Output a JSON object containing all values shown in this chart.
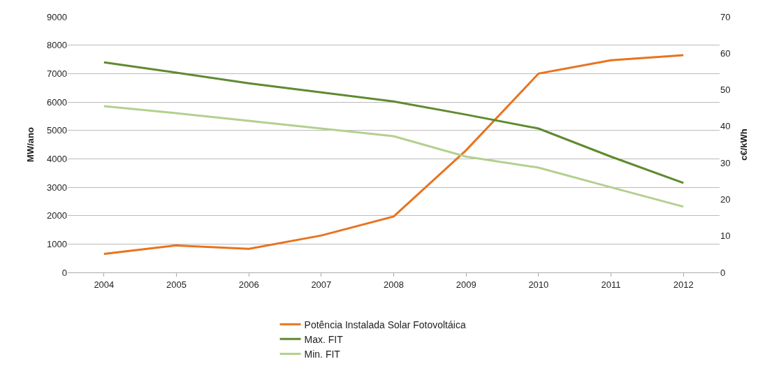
{
  "chart_data": {
    "type": "line",
    "categories": [
      "2004",
      "2005",
      "2006",
      "2007",
      "2008",
      "2009",
      "2010",
      "2011",
      "2012"
    ],
    "ylabel": "MW/ano",
    "y2label": "c€/kWh",
    "ylim": [
      0,
      9000
    ],
    "yticks": [
      0,
      1000,
      2000,
      3000,
      4000,
      5000,
      6000,
      7000,
      8000,
      9000
    ],
    "y2lim": [
      0,
      70
    ],
    "y2ticks": [
      0,
      10,
      20,
      30,
      40,
      50,
      60,
      70
    ],
    "grid": "y",
    "legend": "bottom",
    "marker": "none",
    "line_style": "solid",
    "series": [
      {
        "name": "Potência Instalada Solar Fotovoltáica",
        "color": "#e8731f",
        "values": [
          650,
          950,
          830,
          1300,
          1970,
          4300,
          7000,
          7470,
          7650
        ]
      },
      {
        "name": "Max. FIT",
        "color": "#5f8a30",
        "axis": "y2",
        "values": [
          57.5,
          54.7,
          51.8,
          49.3,
          46.8,
          43.2,
          39.4,
          31.7,
          24.5
        ]
      },
      {
        "name": "Min. FIT",
        "color": "#b3d08e",
        "axis": "y2",
        "values": [
          45.5,
          43.6,
          41.5,
          39.4,
          37.3,
          31.7,
          28.7,
          23.3,
          18.0
        ]
      }
    ]
  }
}
